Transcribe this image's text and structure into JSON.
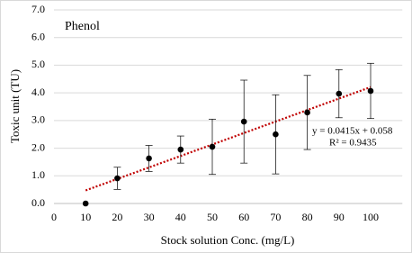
{
  "chart_data": {
    "type": "scatter",
    "annotation": "Phenol",
    "x_label": "Stock solution Conc. (mg/L)",
    "y_label": "Toxic unit (TU)",
    "series": [
      {
        "name": "Phenol",
        "color": "#000000",
        "x": [
          10,
          20,
          30,
          40,
          50,
          60,
          70,
          80,
          90,
          100
        ],
        "values": [
          0.0,
          0.91,
          1.63,
          1.95,
          2.05,
          2.96,
          2.5,
          3.29,
          3.97,
          4.07
        ],
        "errors": [
          null,
          0.4,
          0.47,
          0.49,
          1.0,
          1.5,
          1.43,
          1.34,
          0.87,
          1.0
        ]
      }
    ],
    "trendline": {
      "slope": 0.0415,
      "intercept": 0.058,
      "x_range": [
        10,
        100
      ],
      "color": "#c00000",
      "equation": "y = 0.0415x + 0.058",
      "r2": "R² = 0.9435"
    },
    "xlim": [
      0,
      110
    ],
    "xticks": [
      0,
      10,
      20,
      30,
      40,
      50,
      60,
      70,
      80,
      90,
      100
    ],
    "ylim": [
      0,
      7
    ],
    "yticks": [
      {
        "value": 0,
        "label": "0.0"
      },
      {
        "value": 1,
        "label": "1.0"
      },
      {
        "value": 2,
        "label": "2.0"
      },
      {
        "value": 3,
        "label": "3.0"
      },
      {
        "value": 4,
        "label": "4.0"
      },
      {
        "value": 5,
        "label": "5.0"
      },
      {
        "value": 6,
        "label": "6.0"
      },
      {
        "value": 7,
        "label": "7.0"
      }
    ],
    "grid": true
  }
}
